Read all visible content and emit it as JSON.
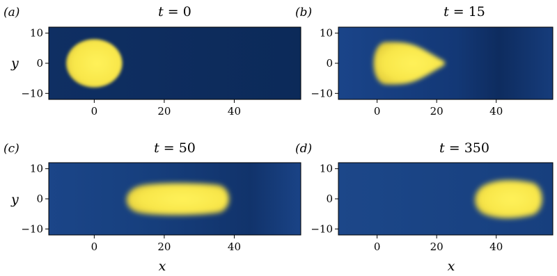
{
  "chart_data": [
    {
      "panel": "(a)",
      "type": "heatmap",
      "title": {
        "var": "t",
        "value": "0"
      },
      "xlabel": "",
      "ylabel": "y",
      "xlim": [
        -13,
        59
      ],
      "ylim": [
        -12,
        12
      ],
      "xticks": [
        0,
        20,
        40
      ],
      "yticks": [
        10,
        0,
        -10
      ],
      "blobs": [
        {
          "type": "circle",
          "cx": 0,
          "cy": 0,
          "r": 8
        }
      ]
    },
    {
      "panel": "(b)",
      "type": "heatmap",
      "title": {
        "var": "t",
        "value": "15"
      },
      "xlabel": "",
      "ylabel": "",
      "xlim": [
        -13,
        59
      ],
      "ylim": [
        -12,
        12
      ],
      "xticks": [
        0,
        20,
        40
      ],
      "yticks": [
        10,
        0,
        -10
      ],
      "blobs": [
        {
          "type": "drop",
          "x0": -1.5,
          "x1": 23.5,
          "hw": 7
        }
      ]
    },
    {
      "panel": "(c)",
      "type": "heatmap",
      "title": {
        "var": "t",
        "value": "50"
      },
      "xlabel": "",
      "ylabel": "y",
      "xlim": [
        -13,
        59
      ],
      "ylim": [
        -12,
        12
      ],
      "xticks": [
        0,
        20,
        40
      ],
      "yticks": [
        10,
        0,
        -10
      ],
      "blobs": [
        {
          "type": "slug",
          "x0": 8.5,
          "x1": 39,
          "hw": 5.3
        }
      ]
    },
    {
      "panel": "(d)",
      "type": "heatmap",
      "title": {
        "var": "t",
        "value": "350"
      },
      "xlabel": "x",
      "ylabel": "",
      "xlim": [
        -13,
        59
      ],
      "ylim": [
        -12,
        12
      ],
      "xticks": [
        0,
        20,
        40
      ],
      "yticks": [
        10,
        0,
        -10
      ],
      "blobs": [
        {
          "type": "slug",
          "x0": 32,
          "x1": 56,
          "hw": 6.3
        }
      ]
    }
  ],
  "shared": {
    "xlabel": "x"
  },
  "colors": {
    "background": "#0d2a5a",
    "background_light": "#1a4589",
    "blob_core": "#fbec4a",
    "blob_edge": "#e6d23c"
  }
}
